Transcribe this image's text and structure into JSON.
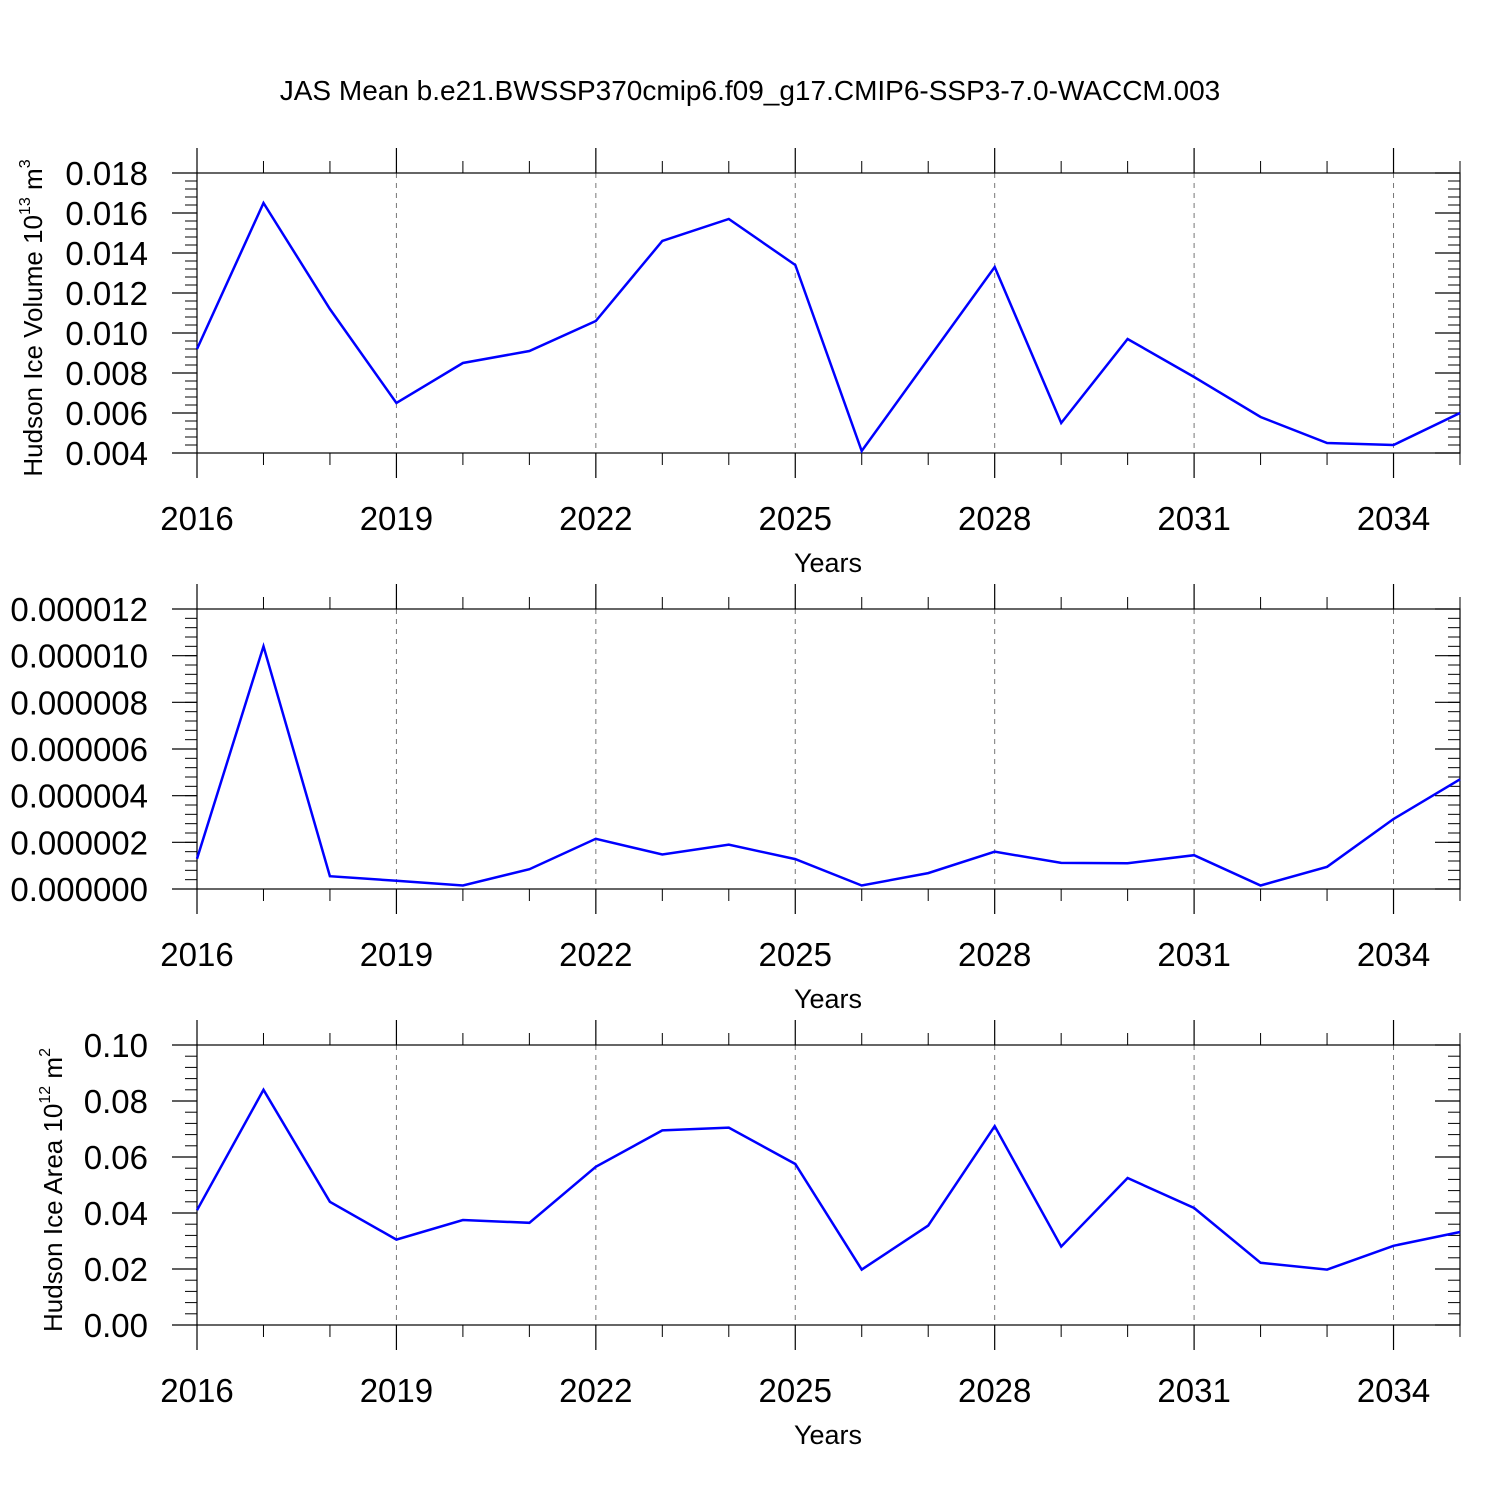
{
  "figure": {
    "title": "JAS Mean b.e21.BWSSP370cmip6.f09_g17.CMIP6-SSP3-7.0-WACCM.003"
  },
  "chart_data": [
    {
      "type": "line",
      "xlabel": "Years",
      "ylabel": {
        "base": "Hudson Ice Volume 10",
        "exp": "13",
        "unit": " m",
        "unit_exp": "3"
      },
      "xlim": [
        2016,
        2035
      ],
      "ylim": [
        0.004,
        0.018
      ],
      "xticks": [
        "2016",
        "2019",
        "2022",
        "2025",
        "2028",
        "2031",
        "2034"
      ],
      "yticks": [
        "0.004",
        "0.006",
        "0.008",
        "0.010",
        "0.012",
        "0.014",
        "0.016",
        "0.018"
      ],
      "grid_x": true,
      "color": "#0000ff",
      "x": [
        2016,
        2017,
        2018,
        2019,
        2020,
        2021,
        2022,
        2023,
        2024,
        2025,
        2026,
        2027,
        2028,
        2029,
        2030,
        2031,
        2032,
        2033,
        2034,
        2035
      ],
      "values": [
        0.0092,
        0.0165,
        0.0112,
        0.0065,
        0.0085,
        0.0091,
        0.0106,
        0.0146,
        0.0157,
        0.0134,
        0.0041,
        0.0087,
        0.0133,
        0.0055,
        0.0097,
        0.0078,
        0.0058,
        0.0045,
        0.0044,
        0.006
      ]
    },
    {
      "type": "line",
      "xlabel": "Years",
      "ylabel": null,
      "xlim": [
        2016,
        2035
      ],
      "ylim": [
        0,
        1.2e-05
      ],
      "xticks": [
        "2016",
        "2019",
        "2022",
        "2025",
        "2028",
        "2031",
        "2034"
      ],
      "yticks": [
        "0.000000",
        "0.000002",
        "0.000004",
        "0.000006",
        "0.000008",
        "0.000010",
        "0.000012"
      ],
      "grid_x": true,
      "color": "#0000ff",
      "x": [
        2016,
        2017,
        2018,
        2019,
        2020,
        2021,
        2022,
        2023,
        2024,
        2025,
        2026,
        2027,
        2028,
        2029,
        2030,
        2031,
        2032,
        2033,
        2034,
        2035
      ],
      "values": [
        1.3e-06,
        1.04e-05,
        5.5e-07,
        3.5e-07,
        1.5e-07,
        8.5e-07,
        2.15e-06,
        1.48e-06,
        1.9e-06,
        1.28e-06,
        1.5e-07,
        6.8e-07,
        1.6e-06,
        1.12e-06,
        1.1e-06,
        1.45e-06,
        1.5e-07,
        9.5e-07,
        3e-06,
        4.7e-06
      ]
    },
    {
      "type": "line",
      "xlabel": "Years",
      "ylabel": {
        "base": "Hudson Ice Area 10",
        "exp": "12",
        "unit": " m",
        "unit_exp": "2"
      },
      "xlim": [
        2016,
        2035
      ],
      "ylim": [
        0,
        0.1
      ],
      "xticks": [
        "2016",
        "2019",
        "2022",
        "2025",
        "2028",
        "2031",
        "2034"
      ],
      "yticks": [
        "0.00",
        "0.02",
        "0.04",
        "0.06",
        "0.08",
        "0.10"
      ],
      "grid_x": true,
      "color": "#0000ff",
      "x": [
        2016,
        2017,
        2018,
        2019,
        2020,
        2021,
        2022,
        2023,
        2024,
        2025,
        2026,
        2027,
        2028,
        2029,
        2030,
        2031,
        2032,
        2033,
        2034,
        2035
      ],
      "values": [
        0.041,
        0.084,
        0.044,
        0.0305,
        0.0375,
        0.0365,
        0.0565,
        0.0695,
        0.0705,
        0.0575,
        0.0198,
        0.0355,
        0.071,
        0.028,
        0.0525,
        0.0418,
        0.0222,
        0.0198,
        0.0283,
        0.0332
      ]
    }
  ]
}
